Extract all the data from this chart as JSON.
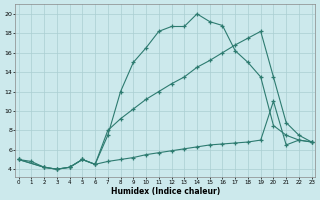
{
  "xlabel": "Humidex (Indice chaleur)",
  "bg_color": "#cce9ec",
  "line_color": "#2d7b70",
  "grid_color": "#aaced2",
  "xlim": [
    -0.3,
    23.3
  ],
  "ylim": [
    3.2,
    21.0
  ],
  "xtick_vals": [
    0,
    1,
    2,
    3,
    4,
    5,
    6,
    7,
    8,
    9,
    10,
    11,
    12,
    13,
    14,
    15,
    16,
    17,
    18,
    19,
    20,
    21,
    22,
    23
  ],
  "ytick_vals": [
    4,
    6,
    8,
    10,
    12,
    14,
    16,
    18,
    20
  ],
  "line1_x": [
    0,
    1,
    2,
    3,
    4,
    5,
    6,
    7,
    8,
    9,
    10,
    11,
    12,
    13,
    14,
    15,
    16,
    17,
    18,
    19,
    20,
    21,
    22,
    23
  ],
  "line1_y": [
    5,
    4.8,
    4.2,
    4.0,
    4.2,
    5.0,
    4.5,
    7.5,
    12.0,
    15.0,
    16.5,
    18.2,
    18.7,
    18.7,
    20.0,
    19.2,
    18.8,
    16.2,
    15.0,
    13.5,
    8.5,
    7.5,
    7.0,
    6.8
  ],
  "line2_x": [
    0,
    2,
    3,
    4,
    5,
    6,
    7,
    8,
    9,
    10,
    11,
    12,
    13,
    14,
    15,
    16,
    17,
    18,
    19,
    20,
    21,
    22,
    23
  ],
  "line2_y": [
    5,
    4.2,
    4.0,
    4.2,
    5.0,
    4.5,
    8.0,
    9.2,
    10.2,
    11.2,
    12.0,
    12.8,
    13.5,
    14.5,
    15.2,
    16.0,
    16.8,
    17.5,
    18.2,
    13.5,
    8.8,
    7.5,
    6.8
  ],
  "line3_x": [
    0,
    2,
    3,
    4,
    5,
    6,
    7,
    8,
    9,
    10,
    11,
    12,
    13,
    14,
    15,
    16,
    17,
    18,
    19,
    20,
    21,
    22,
    23
  ],
  "line3_y": [
    5,
    4.2,
    4.0,
    4.2,
    5.0,
    4.5,
    4.8,
    5.0,
    5.2,
    5.5,
    5.7,
    5.9,
    6.1,
    6.3,
    6.5,
    6.6,
    6.7,
    6.8,
    7.0,
    11.0,
    6.5,
    7.0,
    6.8
  ]
}
